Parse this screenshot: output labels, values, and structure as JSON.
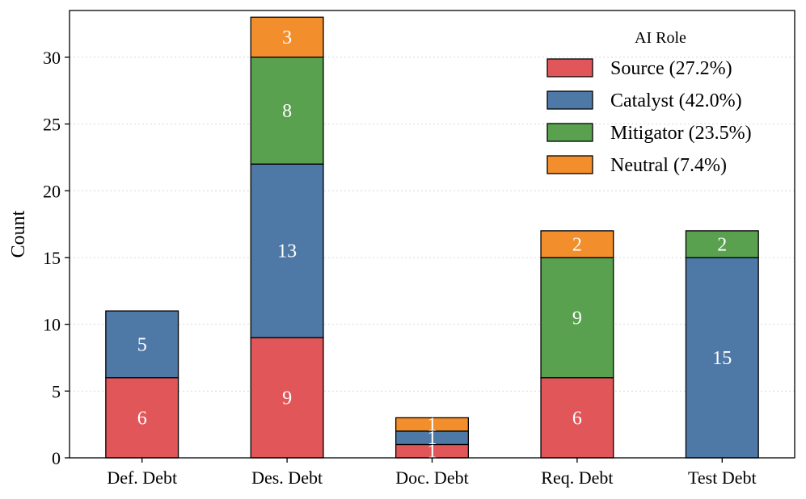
{
  "chart_data": {
    "type": "bar",
    "stacked": true,
    "categories": [
      "Def. Debt",
      "Des. Debt",
      "Doc. Debt",
      "Req. Debt",
      "Test Debt"
    ],
    "series": [
      {
        "name": "Source (27.2%)",
        "values": [
          6,
          9,
          1,
          6,
          0
        ],
        "color": "#e15759"
      },
      {
        "name": "Catalyst (42.0%)",
        "values": [
          5,
          13,
          1,
          0,
          15
        ],
        "color": "#4e79a7"
      },
      {
        "name": "Mitigator (23.5%)",
        "values": [
          0,
          8,
          0,
          9,
          2
        ],
        "color": "#59a14f"
      },
      {
        "name": "Neutral (7.4%)",
        "values": [
          0,
          3,
          1,
          2,
          0
        ],
        "color": "#f28e2b"
      }
    ],
    "title": "",
    "xlabel": "",
    "ylabel": "Count",
    "ylim": [
      0,
      33.5
    ],
    "yticks": [
      0,
      5,
      10,
      15,
      20,
      25,
      30
    ],
    "grid": "horizontal dotted",
    "legend": {
      "title": "AI Role",
      "placement": "top-right"
    }
  }
}
